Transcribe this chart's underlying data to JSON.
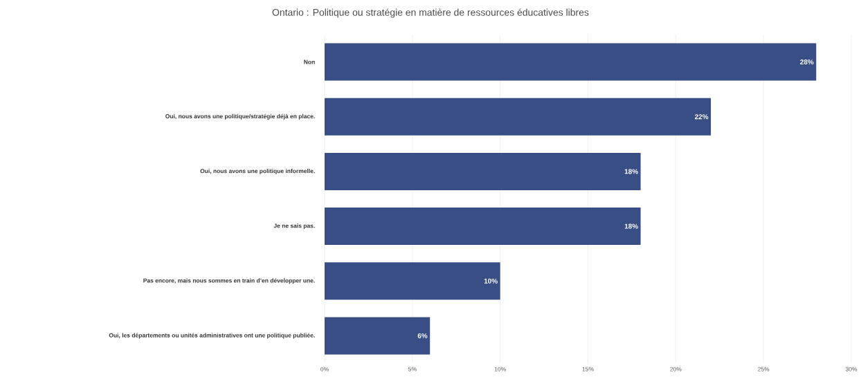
{
  "chart_data": {
    "type": "bar",
    "orientation": "horizontal",
    "title": "Ontario : Politique ou stratégie en matière de ressources éducatives libres",
    "categories": [
      "Non",
      "Oui, nous avons une politique/stratégie déjà en place.",
      "Oui, nous avons une politique informelle.",
      "Je ne sais pas.",
      "Pas encore, mais nous sommes en train d’en développer une.",
      "Oui, les départements ou unités administratives ont une politique publiée."
    ],
    "values": [
      28,
      22,
      18,
      18,
      10,
      6
    ],
    "value_labels": [
      "28%",
      "22%",
      "18%",
      "18%",
      "10%",
      "6%"
    ],
    "color": "#3a4e86",
    "xlim": [
      0,
      30
    ],
    "xticks": [
      {
        "value": 0,
        "label": "0%"
      },
      {
        "value": 5,
        "label": "5%"
      },
      {
        "value": 10,
        "label": "10%"
      },
      {
        "value": 15,
        "label": "15%"
      },
      {
        "value": 20,
        "label": "20%"
      },
      {
        "value": 25,
        "label": "25%"
      },
      {
        "value": 30,
        "label": "30%"
      }
    ],
    "grid": "x"
  }
}
